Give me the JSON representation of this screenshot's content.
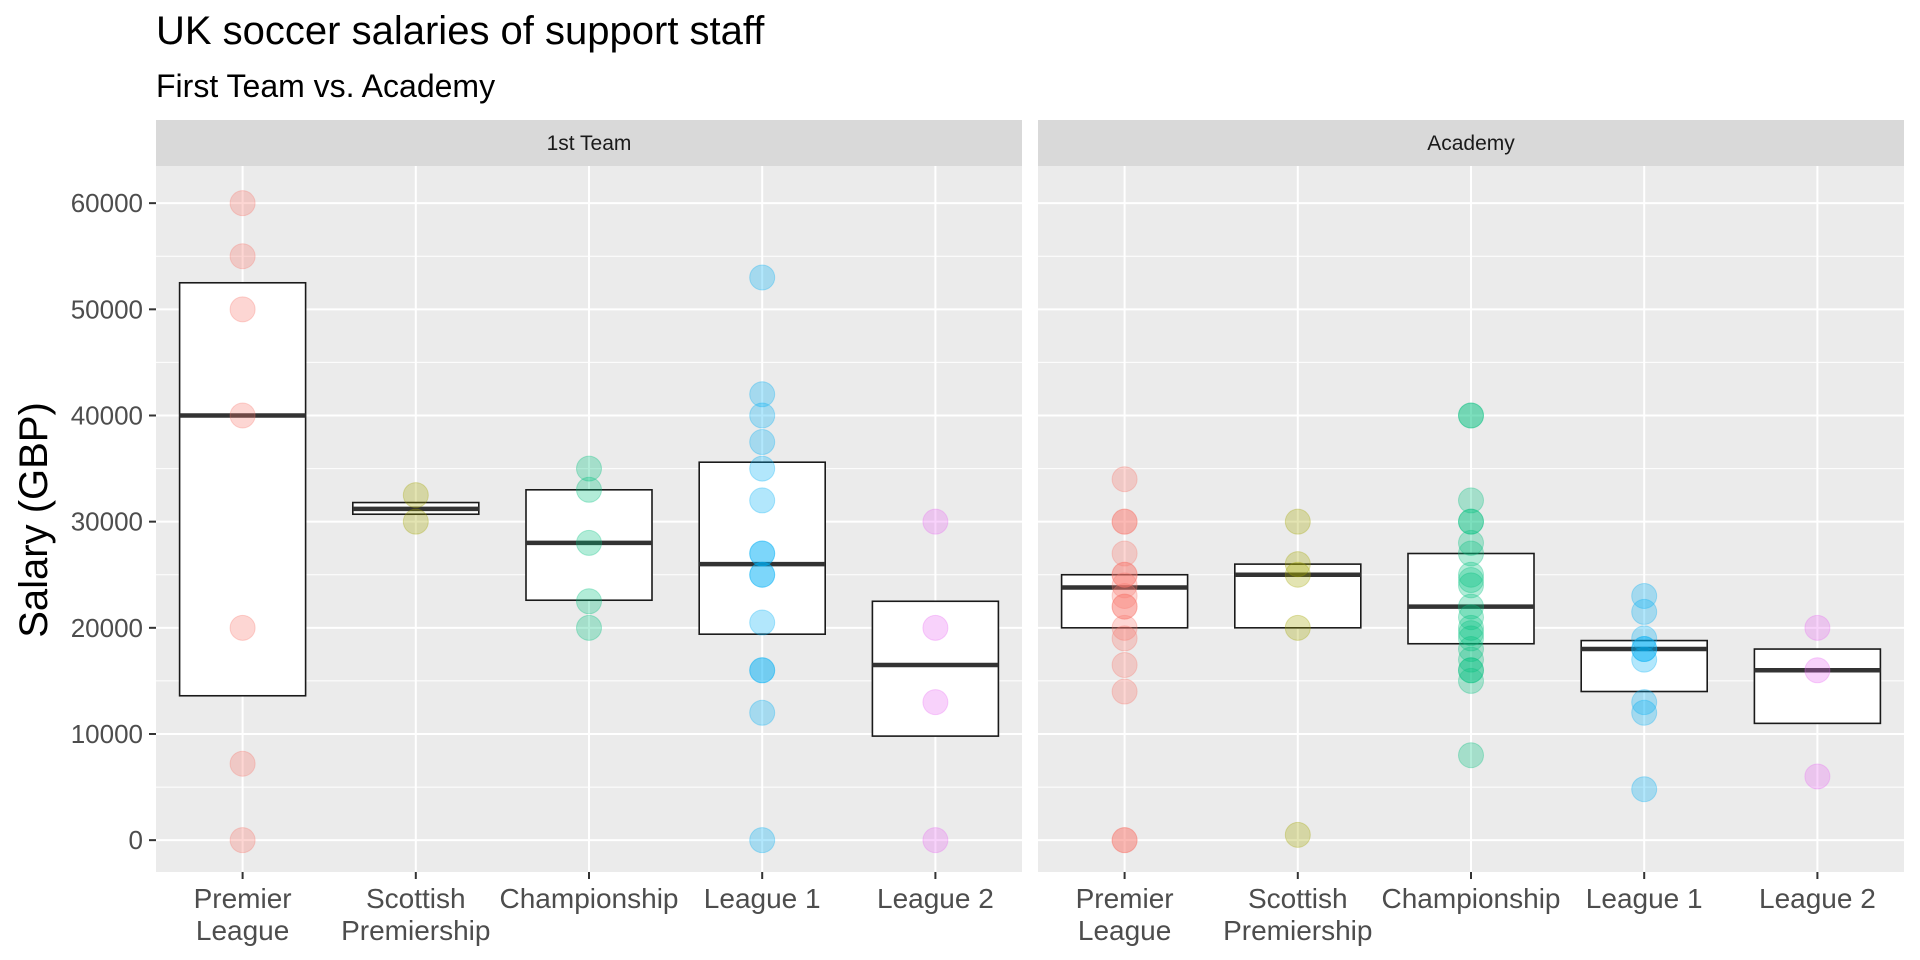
{
  "chart_data": {
    "type": "box",
    "title": "UK soccer salaries of support staff",
    "subtitle": "First Team vs. Academy",
    "ylabel": "Salary (GBP)",
    "xlabel": "",
    "ylim": [
      -3000,
      63500
    ],
    "y_ticks": [
      0,
      10000,
      20000,
      30000,
      40000,
      50000,
      60000
    ],
    "categories": [
      "Premier\nLeague",
      "Scottish\nPremiership",
      "Championship",
      "League 1",
      "League 2"
    ],
    "colors": [
      "#F8766D",
      "#A3A500",
      "#00BF7D",
      "#00B0F6",
      "#E76BF3"
    ],
    "grid": true,
    "legend": "none",
    "panels": [
      {
        "name": "1st Team",
        "boxes": [
          {
            "q1": 13600,
            "median": 40000,
            "q3": 52500
          },
          {
            "q1": 30700,
            "median": 31200,
            "q3": 31800
          },
          {
            "q1": 22600,
            "median": 28000,
            "q3": 33000
          },
          {
            "q1": 19400,
            "median": 26000,
            "q3": 35600
          },
          {
            "q1": 9800,
            "median": 16500,
            "q3": 22500
          }
        ],
        "points": [
          [
            60000,
            55000,
            50000,
            40000,
            20000,
            7200,
            0
          ],
          [
            32500,
            30000
          ],
          [
            35000,
            33000,
            28000,
            22500,
            20000
          ],
          [
            53000,
            42000,
            40000,
            37500,
            35000,
            32000,
            27000,
            27000,
            25000,
            25000,
            20500,
            16000,
            16000,
            12000,
            0
          ],
          [
            30000,
            20000,
            13000,
            0
          ]
        ]
      },
      {
        "name": "Academy",
        "boxes": [
          {
            "q1": 20000,
            "median": 23800,
            "q3": 25000
          },
          {
            "q1": 20000,
            "median": 25000,
            "q3": 26000
          },
          {
            "q1": 18500,
            "median": 22000,
            "q3": 27000
          },
          {
            "q1": 14000,
            "median": 18000,
            "q3": 18800
          },
          {
            "q1": 11000,
            "median": 16000,
            "q3": 18000
          }
        ],
        "points": [
          [
            34000,
            30000,
            30000,
            27000,
            25000,
            25000,
            24000,
            23000,
            22000,
            22000,
            20000,
            19000,
            16500,
            14000,
            0,
            0
          ],
          [
            30000,
            26000,
            25000,
            20000,
            500
          ],
          [
            40000,
            40000,
            32000,
            30000,
            30000,
            28000,
            27000,
            25000,
            24500,
            24000,
            22000,
            21000,
            20000,
            19500,
            19000,
            18000,
            17000,
            16000,
            16000,
            15000,
            8000
          ],
          [
            23000,
            21500,
            19000,
            18000,
            18000,
            17000,
            13000,
            12000,
            4800
          ],
          [
            20000,
            16000,
            6000
          ]
        ]
      }
    ]
  }
}
